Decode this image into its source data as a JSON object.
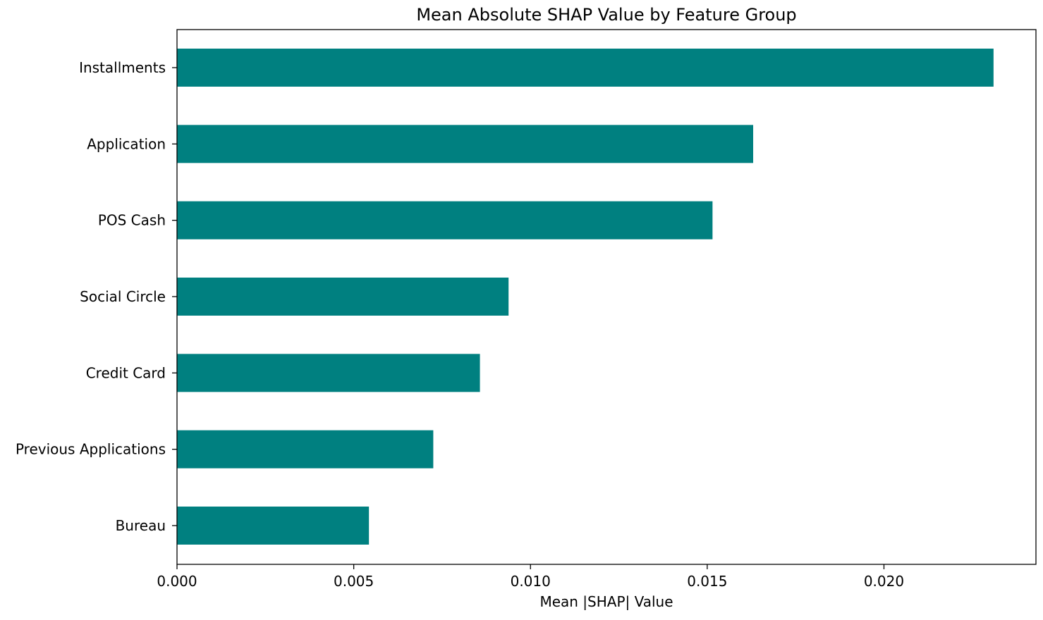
{
  "chart_data": {
    "type": "bar",
    "orientation": "horizontal",
    "title": "Mean Absolute SHAP Value by Feature Group",
    "xlabel": "Mean |SHAP| Value",
    "ylabel": "",
    "categories": [
      "Installments",
      "Application",
      "POS Cash",
      "Social Circle",
      "Credit Card",
      "Previous Applications",
      "Bureau"
    ],
    "values": [
      0.0231,
      0.0163,
      0.01515,
      0.00938,
      0.00857,
      0.00725,
      0.00543
    ],
    "xlim": [
      0,
      0.0243
    ],
    "xticks": [
      0.0,
      0.005,
      0.01,
      0.015,
      0.02
    ],
    "xtick_labels": [
      "0.000",
      "0.005",
      "0.010",
      "0.015",
      "0.020"
    ],
    "bar_color": "#008080",
    "grid": false,
    "legend": "none"
  }
}
